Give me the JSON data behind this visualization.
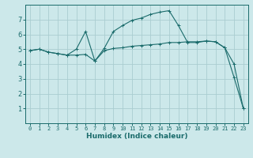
{
  "xlabel": "Humidex (Indice chaleur)",
  "ylabel": "",
  "bg_color": "#cce8ea",
  "grid_color": "#aacdd0",
  "line_color": "#1a6b6b",
  "xlim": [
    -0.5,
    23.5
  ],
  "ylim": [
    0,
    8
  ],
  "xticks": [
    0,
    1,
    2,
    3,
    4,
    5,
    6,
    7,
    8,
    9,
    10,
    11,
    12,
    13,
    14,
    15,
    16,
    17,
    18,
    19,
    20,
    21,
    22,
    23
  ],
  "yticks": [
    1,
    2,
    3,
    4,
    5,
    6,
    7
  ],
  "series1_x": [
    0,
    1,
    2,
    3,
    4,
    5,
    6,
    7,
    8,
    9,
    10,
    11,
    12,
    13,
    14,
    15,
    16,
    17,
    18,
    19,
    20,
    21,
    22,
    23
  ],
  "series1_y": [
    4.9,
    5.0,
    4.8,
    4.7,
    4.6,
    4.6,
    4.65,
    4.2,
    4.9,
    5.05,
    5.1,
    5.2,
    5.25,
    5.3,
    5.35,
    5.45,
    5.45,
    5.5,
    5.5,
    5.55,
    5.5,
    5.1,
    4.0,
    1.0
  ],
  "series2_x": [
    0,
    1,
    2,
    3,
    4,
    5,
    6,
    7,
    8,
    9,
    10,
    11,
    12,
    13,
    14,
    15,
    16,
    17,
    18,
    19,
    20,
    21,
    22,
    23
  ],
  "series2_y": [
    4.9,
    5.0,
    4.8,
    4.7,
    4.6,
    5.0,
    6.2,
    4.2,
    5.05,
    6.2,
    6.6,
    6.95,
    7.1,
    7.35,
    7.5,
    7.6,
    6.6,
    5.45,
    5.45,
    5.55,
    5.5,
    5.1,
    3.1,
    1.0
  ]
}
